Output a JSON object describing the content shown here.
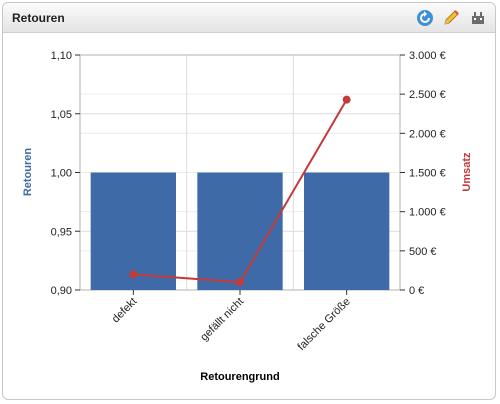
{
  "widget": {
    "title": "Retouren"
  },
  "icons": [
    "refresh-icon",
    "edit-icon",
    "plugin-icon"
  ],
  "chart_data": {
    "type": "bar",
    "categories": [
      "defekt",
      "gefällt nicht",
      "falsche Größe"
    ],
    "xlabel": "Retourengrund",
    "series": [
      {
        "name": "Retouren",
        "type": "bar",
        "axis": "left",
        "color": "#3e6ba8",
        "values": [
          1.0,
          1.0,
          1.0
        ]
      },
      {
        "name": "Umsatz",
        "type": "line",
        "axis": "right",
        "color": "#c43a3a",
        "values": [
          200,
          100,
          2430
        ]
      }
    ],
    "y_left": {
      "label": "Retouren",
      "range": [
        0.9,
        1.1
      ],
      "ticks": [
        "0,90",
        "0,95",
        "1,00",
        "1,05",
        "1,10"
      ],
      "tick_values": [
        0.9,
        0.95,
        1.0,
        1.05,
        1.1
      ],
      "color": "#3e6ba8"
    },
    "y_right": {
      "label": "Umsatz",
      "range": [
        0,
        3000
      ],
      "ticks": [
        "0 €",
        "500 €",
        "1.000 €",
        "1.500 €",
        "2.000 €",
        "2.500 €",
        "3.000 €"
      ],
      "tick_values": [
        0,
        500,
        1000,
        1500,
        2000,
        2500,
        3000
      ],
      "color": "#c43a3a"
    },
    "grid": true
  }
}
